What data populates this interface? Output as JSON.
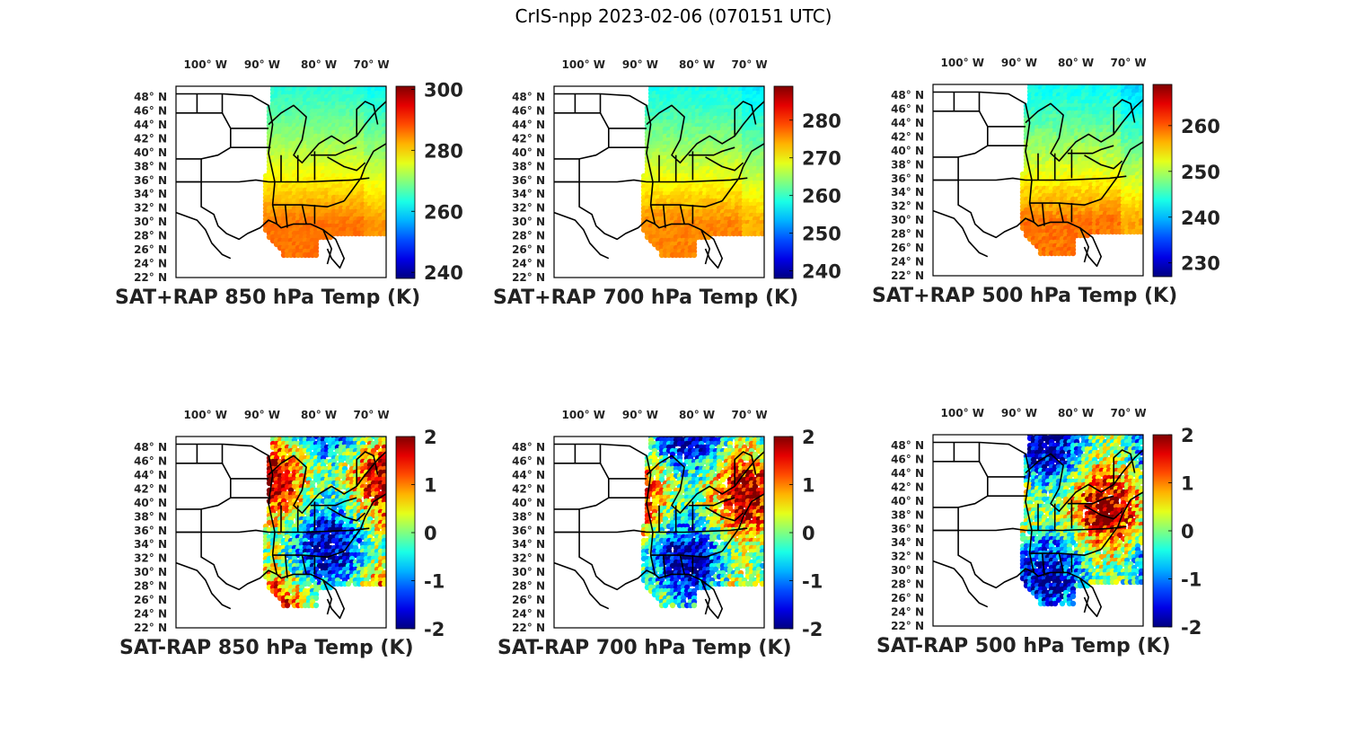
{
  "figure": {
    "title": "CrIS-npp 2023-02-06 (070151 UTC)"
  },
  "chart_data": [
    {
      "type": "heatmap",
      "title": "SAT+RAP 850 hPa Temp (K)",
      "lon_ticks": [
        "100° W",
        "90° W",
        "80° W",
        "70° W"
      ],
      "lat_ticks": [
        "48° N",
        "46° N",
        "44° N",
        "42° N",
        "40° N",
        "38° N",
        "36° N",
        "34° N",
        "32° N",
        "30° N",
        "28° N",
        "26° N",
        "24° N",
        "22° N"
      ],
      "colorbar": {
        "ticks": [
          "300",
          "280",
          "260",
          "240"
        ],
        "range": [
          238,
          301
        ],
        "colormap": "jet"
      },
      "field": {
        "kind": "absolute",
        "north_value": 264,
        "south_value": 286
      }
    },
    {
      "type": "heatmap",
      "title": "SAT+RAP 700 hPa Temp (K)",
      "lon_ticks": [
        "100° W",
        "90° W",
        "80° W",
        "70° W"
      ],
      "lat_ticks": [
        "48° N",
        "46° N",
        "44° N",
        "42° N",
        "40° N",
        "38° N",
        "36° N",
        "34° N",
        "32° N",
        "30° N",
        "28° N",
        "26° N",
        "24° N",
        "22° N"
      ],
      "colorbar": {
        "ticks": [
          "280",
          "270",
          "260",
          "250",
          "240"
        ],
        "range": [
          238,
          289
        ],
        "colormap": "jet"
      },
      "field": {
        "kind": "absolute",
        "north_value": 258,
        "south_value": 276
      }
    },
    {
      "type": "heatmap",
      "title": "SAT+RAP 500 hPa Temp (K)",
      "lon_ticks": [
        "100° W",
        "90° W",
        "80° W",
        "70° W"
      ],
      "lat_ticks": [
        "48° N",
        "46° N",
        "44° N",
        "42° N",
        "40° N",
        "38° N",
        "36° N",
        "34° N",
        "32° N",
        "30° N",
        "28° N",
        "26° N",
        "24° N",
        "22° N"
      ],
      "colorbar": {
        "ticks": [
          "260",
          "250",
          "240",
          "230"
        ],
        "range": [
          227,
          269
        ],
        "colormap": "jet"
      },
      "field": {
        "kind": "absolute",
        "north_value": 243,
        "south_value": 259
      }
    },
    {
      "type": "heatmap",
      "title": "SAT-RAP 850 hPa Temp (K)",
      "lon_ticks": [
        "100° W",
        "90° W",
        "80° W",
        "70° W"
      ],
      "lat_ticks": [
        "48° N",
        "46° N",
        "44° N",
        "42° N",
        "40° N",
        "38° N",
        "36° N",
        "34° N",
        "32° N",
        "30° N",
        "28° N",
        "26° N",
        "24° N",
        "22° N"
      ],
      "colorbar": {
        "ticks": [
          "2",
          "1",
          "0",
          "-1",
          "-2"
        ],
        "range": [
          -2,
          2
        ],
        "colormap": "jet"
      },
      "field": {
        "kind": "difference",
        "seed": 11
      }
    },
    {
      "type": "heatmap",
      "title": "SAT-RAP 700 hPa Temp (K)",
      "lon_ticks": [
        "100° W",
        "90° W",
        "80° W",
        "70° W"
      ],
      "lat_ticks": [
        "48° N",
        "46° N",
        "44° N",
        "42° N",
        "40° N",
        "38° N",
        "36° N",
        "34° N",
        "32° N",
        "30° N",
        "28° N",
        "26° N",
        "24° N",
        "22° N"
      ],
      "colorbar": {
        "ticks": [
          "2",
          "1",
          "0",
          "-1",
          "-2"
        ],
        "range": [
          -2,
          2
        ],
        "colormap": "jet"
      },
      "field": {
        "kind": "difference",
        "seed": 23
      }
    },
    {
      "type": "heatmap",
      "title": "SAT-RAP 500 hPa Temp (K)",
      "lon_ticks": [
        "100° W",
        "90° W",
        "80° W",
        "70° W"
      ],
      "lat_ticks": [
        "48° N",
        "46° N",
        "44° N",
        "42° N",
        "40° N",
        "38° N",
        "36° N",
        "34° N",
        "32° N",
        "30° N",
        "28° N",
        "26° N",
        "24° N",
        "22° N"
      ],
      "colorbar": {
        "ticks": [
          "2",
          "1",
          "0",
          "-1",
          "-2"
        ],
        "range": [
          -2,
          2
        ],
        "colormap": "jet"
      },
      "field": {
        "kind": "difference",
        "seed": 37
      }
    }
  ]
}
